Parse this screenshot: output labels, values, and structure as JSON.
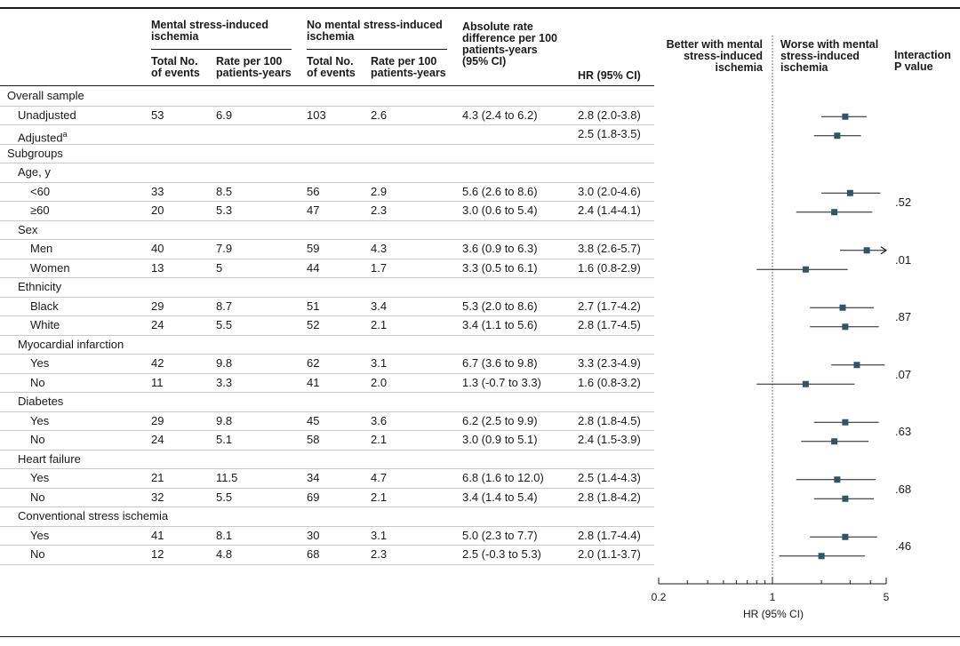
{
  "headers": {
    "group1": "Mental stress-induced\nischemia",
    "group2": "No mental stress-induced\nischemia",
    "g1_events": "Total No.\nof events",
    "g1_rate": "Rate per 100\npatients-years",
    "g2_events": "Total No.\nof events",
    "g2_rate": "Rate per 100\npatients-years",
    "diff": "Absolute rate\ndifference per 100\npatients-years\n(95% CI)",
    "hr": "HR (95% CI)",
    "better": "Better with mental\nstress-induced\nischemia",
    "worse": "Worse with mental\nstress-induced\nischemia",
    "interaction": "Interaction\nP value"
  },
  "rows": [
    {
      "label": "Overall sample",
      "indent": 0
    },
    {
      "label": "Unadjusted",
      "indent": 1,
      "e1": "53",
      "r1": "6.9",
      "e2": "103",
      "r2": "2.6",
      "diff": "4.3 (2.4 to 6.2)",
      "hr": "2.8 (2.0-3.8)"
    },
    {
      "label": "Adjusted",
      "sup": "a",
      "indent": 1,
      "hr": "2.5 (1.8-3.5)"
    },
    {
      "label": "Subgroups",
      "indent": 0
    },
    {
      "label": "Age, y",
      "indent": 1
    },
    {
      "label": "<60",
      "indent": 2,
      "e1": "33",
      "r1": "8.5",
      "e2": "56",
      "r2": "2.9",
      "diff": "5.6 (2.6 to 8.6)",
      "hr": "3.0 (2.0-4.6)"
    },
    {
      "label": "≥60",
      "indent": 2,
      "e1": "20",
      "r1": "5.3",
      "e2": "47",
      "r2": "2.3",
      "diff": "3.0 (0.6 to 5.4)",
      "hr": "2.4 (1.4-4.1)"
    },
    {
      "label": "Sex",
      "indent": 1
    },
    {
      "label": "Men",
      "indent": 2,
      "e1": "40",
      "r1": "7.9",
      "e2": "59",
      "r2": "4.3",
      "diff": "3.6 (0.9 to 6.3)",
      "hr": "3.8 (2.6-5.7)"
    },
    {
      "label": "Women",
      "indent": 2,
      "e1": "13",
      "r1": "5",
      "e2": "44",
      "r2": "1.7",
      "diff": "3.3 (0.5 to 6.1)",
      "hr": "1.6 (0.8-2.9)"
    },
    {
      "label": "Ethnicity",
      "indent": 1
    },
    {
      "label": "Black",
      "indent": 2,
      "e1": "29",
      "r1": "8.7",
      "e2": "51",
      "r2": "3.4",
      "diff": "5.3 (2.0 to 8.6)",
      "hr": "2.7 (1.7-4.2)"
    },
    {
      "label": "White",
      "indent": 2,
      "e1": "24",
      "r1": "5.5",
      "e2": "52",
      "r2": "2.1",
      "diff": "3.4 (1.1 to 5.6)",
      "hr": "2.8 (1.7-4.5)"
    },
    {
      "label": "Myocardial infarction",
      "indent": 1
    },
    {
      "label": "Yes",
      "indent": 2,
      "e1": "42",
      "r1": "9.8",
      "e2": "62",
      "r2": "3.1",
      "diff": "6.7 (3.6 to 9.8)",
      "hr": "3.3 (2.3-4.9)"
    },
    {
      "label": "No",
      "indent": 2,
      "e1": "11",
      "r1": "3.3",
      "e2": "41",
      "r2": "2.0",
      "diff": "1.3 (-0.7 to 3.3)",
      "hr": "1.6 (0.8-3.2)"
    },
    {
      "label": "Diabetes",
      "indent": 1
    },
    {
      "label": "Yes",
      "indent": 2,
      "e1": "29",
      "r1": "9.8",
      "e2": "45",
      "r2": "3.6",
      "diff": "6.2 (2.5 to 9.9)",
      "hr": "2.8 (1.8-4.5)"
    },
    {
      "label": "No",
      "indent": 2,
      "e1": "24",
      "r1": "5.1",
      "e2": "58",
      "r2": "2.1",
      "diff": "3.0 (0.9 to 5.1)",
      "hr": "2.4 (1.5-3.9)"
    },
    {
      "label": "Heart failure",
      "indent": 1
    },
    {
      "label": "Yes",
      "indent": 2,
      "e1": "21",
      "r1": "11.5",
      "e2": "34",
      "r2": "4.7",
      "diff": "6.8 (1.6 to 12.0)",
      "hr": "2.5 (1.4-4.3)"
    },
    {
      "label": "No",
      "indent": 2,
      "e1": "32",
      "r1": "5.5",
      "e2": "69",
      "r2": "2.1",
      "diff": "3.4 (1.4 to 5.4)",
      "hr": "2.8 (1.8-4.2)"
    },
    {
      "label": "Conventional stress ischemia",
      "indent": 1
    },
    {
      "label": "Yes",
      "indent": 2,
      "e1": "41",
      "r1": "8.1",
      "e2": "30",
      "r2": "3.1",
      "diff": "5.0 (2.3 to 7.7)",
      "hr": "2.8 (1.7-4.4)"
    },
    {
      "label": "No",
      "indent": 2,
      "e1": "12",
      "r1": "4.8",
      "e2": "68",
      "r2": "2.3",
      "diff": "2.5 (-0.3 to 5.3)",
      "hr": "2.0 (1.1-3.7)"
    }
  ],
  "pvalues": [
    {
      "value": ".52",
      "rows": [
        5,
        6
      ]
    },
    {
      "value": ".01",
      "rows": [
        8,
        9
      ]
    },
    {
      "value": ".87",
      "rows": [
        11,
        12
      ]
    },
    {
      "value": ".07",
      "rows": [
        14,
        15
      ]
    },
    {
      "value": ".63",
      "rows": [
        17,
        18
      ]
    },
    {
      "value": ".68",
      "rows": [
        20,
        21
      ]
    },
    {
      "value": ".46",
      "rows": [
        23,
        24
      ]
    }
  ],
  "chart_data": {
    "type": "forest",
    "xlabel": "HR (95% CI)",
    "xscale": "log",
    "xlim": [
      0.2,
      5
    ],
    "ticks": [
      0.2,
      1,
      5
    ],
    "reference_line": 1,
    "points": [
      {
        "row": 1,
        "est": 2.8,
        "lo": 2.0,
        "hi": 3.8
      },
      {
        "row": 2,
        "est": 2.5,
        "lo": 1.8,
        "hi": 3.5
      },
      {
        "row": 5,
        "est": 3.0,
        "lo": 2.0,
        "hi": 4.6
      },
      {
        "row": 6,
        "est": 2.4,
        "lo": 1.4,
        "hi": 4.1
      },
      {
        "row": 8,
        "est": 3.8,
        "lo": 2.6,
        "hi": 5.7
      },
      {
        "row": 9,
        "est": 1.6,
        "lo": 0.8,
        "hi": 2.9
      },
      {
        "row": 11,
        "est": 2.7,
        "lo": 1.7,
        "hi": 4.2
      },
      {
        "row": 12,
        "est": 2.8,
        "lo": 1.7,
        "hi": 4.5
      },
      {
        "row": 14,
        "est": 3.3,
        "lo": 2.3,
        "hi": 4.9
      },
      {
        "row": 15,
        "est": 1.6,
        "lo": 0.8,
        "hi": 3.2
      },
      {
        "row": 17,
        "est": 2.8,
        "lo": 1.8,
        "hi": 4.5
      },
      {
        "row": 18,
        "est": 2.4,
        "lo": 1.5,
        "hi": 3.9
      },
      {
        "row": 20,
        "est": 2.5,
        "lo": 1.4,
        "hi": 4.3
      },
      {
        "row": 21,
        "est": 2.8,
        "lo": 1.8,
        "hi": 4.2
      },
      {
        "row": 23,
        "est": 2.8,
        "lo": 1.7,
        "hi": 4.4
      },
      {
        "row": 24,
        "est": 2.0,
        "lo": 1.1,
        "hi": 3.7
      }
    ]
  },
  "colors": {
    "marker": "#2f5566",
    "line": "#1a1a1a",
    "row_divider": "#c9c9c9",
    "ref_line": "#444444"
  }
}
